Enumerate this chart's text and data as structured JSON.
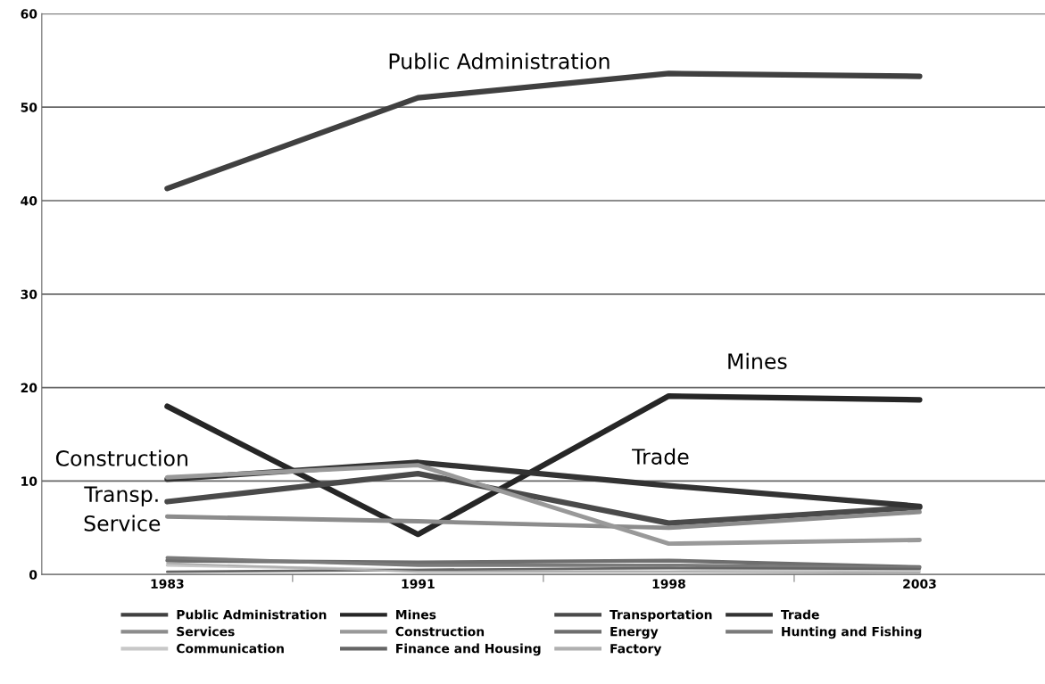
{
  "chart_data": {
    "type": "line",
    "categories": [
      "1983",
      "1991",
      "1998",
      "2003"
    ],
    "series": [
      {
        "name": "Public Administration",
        "color": "#404040",
        "values": [
          41.3,
          51.0,
          53.6,
          53.3
        ]
      },
      {
        "name": "Mines",
        "color": "#262626",
        "values": [
          18.0,
          4.3,
          19.1,
          18.7
        ]
      },
      {
        "name": "Transportation",
        "color": "#4a4a4a",
        "values": [
          7.8,
          10.8,
          5.5,
          7.2
        ]
      },
      {
        "name": "Trade",
        "color": "#333333",
        "values": [
          10.2,
          12.0,
          9.5,
          7.3
        ]
      },
      {
        "name": "Services",
        "color": "#8c8c8c",
        "values": [
          6.2,
          5.7,
          5.0,
          6.7
        ]
      },
      {
        "name": "Construction",
        "color": "#999999",
        "values": [
          10.4,
          11.7,
          3.3,
          3.7
        ]
      },
      {
        "name": "Energy",
        "color": "#6e6e6e",
        "values": [
          1.5,
          1.3,
          1.5,
          0.8
        ]
      },
      {
        "name": "Hunting and Fishing",
        "color": "#7a7a7a",
        "values": [
          1.8,
          1.0,
          1.0,
          0.7
        ]
      },
      {
        "name": "Communication",
        "color": "#c8c8c8",
        "values": [
          1.0,
          0.5,
          0.6,
          0.4
        ]
      },
      {
        "name": "Finance and Housing",
        "color": "#666666",
        "values": [
          0.3,
          0.5,
          0.7,
          0.6
        ]
      },
      {
        "name": "Factory",
        "color": "#b0b0b0",
        "values": [
          1.2,
          0.3,
          0.3,
          0.2
        ]
      }
    ],
    "ylim": [
      0,
      60
    ],
    "yticks": [
      0,
      10,
      20,
      30,
      40,
      50,
      60
    ],
    "grid": "y",
    "legend": "bottom",
    "marker": "none",
    "line_style": "solid",
    "annotations": [
      "Public Administration",
      "Mines",
      "Trade",
      "Construction",
      "Transp.",
      "Service"
    ]
  }
}
